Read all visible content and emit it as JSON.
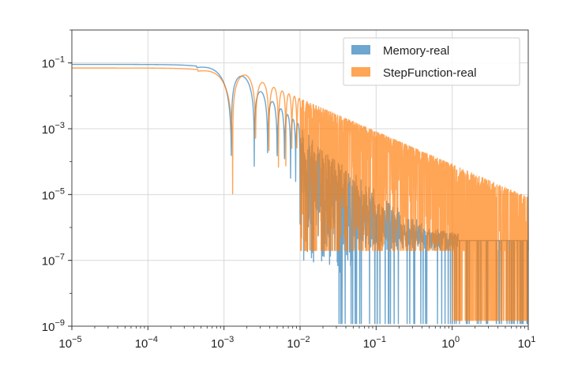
{
  "chart_data": {
    "type": "area",
    "title": "",
    "xlabel": "",
    "ylabel": "",
    "xscale": "log",
    "yscale": "log",
    "xlim": [
      1e-05,
      10
    ],
    "ylim": [
      1e-09,
      1
    ],
    "grid": true,
    "legend_position": "top-right",
    "x_ticks": [
      {
        "base": "10",
        "exp": "−5"
      },
      {
        "base": "10",
        "exp": "−4"
      },
      {
        "base": "10",
        "exp": "−3"
      },
      {
        "base": "10",
        "exp": "−2"
      },
      {
        "base": "10",
        "exp": "−1"
      },
      {
        "base": "10",
        "exp": "0"
      },
      {
        "base": "10",
        "exp": "1"
      }
    ],
    "y_ticks": [
      {
        "base": "10",
        "exp": "−1"
      },
      {
        "base": "10",
        "exp": "−3"
      },
      {
        "base": "10",
        "exp": "−5"
      },
      {
        "base": "10",
        "exp": "−7"
      },
      {
        "base": "10",
        "exp": "−9"
      }
    ],
    "series": [
      {
        "name": "Memory-real",
        "color": "#1f77b4",
        "opacity": 0.65,
        "plateau": 0.09,
        "first_null": 0.00125,
        "decay_power": 2,
        "noise_floor": 4e-07,
        "min_value": 1e-09
      },
      {
        "name": "StepFunction-real",
        "color": "#ff7f0e",
        "opacity": 0.7,
        "plateau": 0.07,
        "first_null": 0.0013,
        "decay_power": 1,
        "noise_floor": 4e-07,
        "min_value": 1e-09
      }
    ]
  }
}
